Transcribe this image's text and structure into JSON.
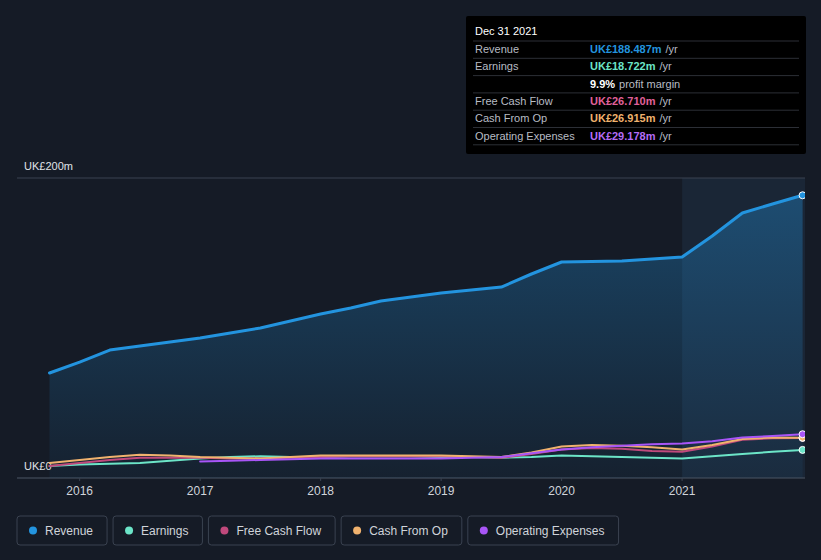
{
  "chart_data": {
    "type": "line",
    "x": [
      2015.75,
      2016.0,
      2016.25,
      2016.5,
      2016.75,
      2017.0,
      2017.25,
      2017.5,
      2017.75,
      2018.0,
      2018.25,
      2018.5,
      2018.75,
      2019.0,
      2019.25,
      2019.5,
      2019.75,
      2020.0,
      2020.25,
      2020.5,
      2020.75,
      2021.0,
      2021.25,
      2021.5,
      2021.75,
      2022.0
    ],
    "series": [
      {
        "name": "Revenue",
        "color": "#2394df",
        "type": "area",
        "values": [
          70,
          77.3,
          85.3,
          88,
          90.7,
          93.3,
          96.7,
          100,
          104.7,
          109.3,
          113.3,
          118,
          120.7,
          123.3,
          125.3,
          127.3,
          136,
          144,
          144.3,
          144.7,
          146,
          147.3,
          161.3,
          176.7,
          182.7,
          188.487
        ]
      },
      {
        "name": "Earnings",
        "color": "#6ce5c8",
        "type": "line",
        "values": [
          8,
          9,
          9.5,
          10,
          11.5,
          13,
          14,
          14.5,
          14,
          14,
          14.5,
          14.5,
          14.5,
          14,
          14,
          13.5,
          14,
          15,
          14.5,
          14,
          13.5,
          13,
          14.5,
          16,
          17.5,
          18.722
        ]
      },
      {
        "name": "Free Cash Flow",
        "color": "#c0497c",
        "type": "line",
        "values": [
          8,
          10,
          12,
          13.5,
          13.5,
          13.5,
          13,
          13,
          13.5,
          14,
          14.5,
          14.5,
          14.5,
          14.5,
          14,
          13.5,
          16,
          19,
          20,
          19.5,
          18,
          17.5,
          21,
          25.5,
          26.5,
          26.71
        ]
      },
      {
        "name": "Cash From Op",
        "color": "#f0b26e",
        "type": "line",
        "values": [
          10,
          12,
          14,
          15.5,
          15,
          14,
          13.5,
          13,
          14,
          15,
          15,
          15,
          15,
          15,
          14.5,
          14,
          17,
          21,
          22,
          21.5,
          20.5,
          19,
          22,
          26,
          27,
          26.915
        ]
      },
      {
        "name": "Operating Expenses",
        "color": "#a855f7",
        "type": "line",
        "values": [
          null,
          null,
          null,
          null,
          null,
          11,
          11.5,
          12,
          12.5,
          13,
          13,
          13,
          13,
          13,
          13.5,
          14,
          16.5,
          19,
          20.5,
          21.5,
          22.5,
          23,
          24.5,
          27,
          28,
          29.178
        ]
      }
    ],
    "xlim": [
      2015.48,
      2022.02
    ],
    "xticks": [
      2016,
      2017,
      2018,
      2019,
      2020,
      2021
    ],
    "ylim": [
      0,
      200
    ],
    "yticks": [
      {
        "value": 0,
        "label": "UK£0"
      },
      {
        "value": 200,
        "label": "UK£200m"
      }
    ],
    "grid": true,
    "legend": "bottom",
    "annotations": {
      "tooltip": {
        "title": "Dec 31 2021",
        "rows": [
          {
            "label": "Revenue",
            "value": "UK£188.487m",
            "unit": "/yr",
            "color": "#2394df"
          },
          {
            "label": "Earnings",
            "value": "UK£18.722m",
            "unit": "/yr",
            "color": "#6ce5c8"
          },
          {
            "value": "9.9%",
            "unit": "profit margin",
            "color": "#ffffff"
          },
          {
            "label": "Free Cash Flow",
            "value": "UK£26.710m",
            "unit": "/yr",
            "color": "#e0609a"
          },
          {
            "label": "Cash From Op",
            "value": "UK£26.915m",
            "unit": "/yr",
            "color": "#f0b26e"
          },
          {
            "label": "Operating Expenses",
            "value": "UK£29.178m",
            "unit": "/yr",
            "color": "#b46cf7"
          }
        ]
      }
    }
  }
}
